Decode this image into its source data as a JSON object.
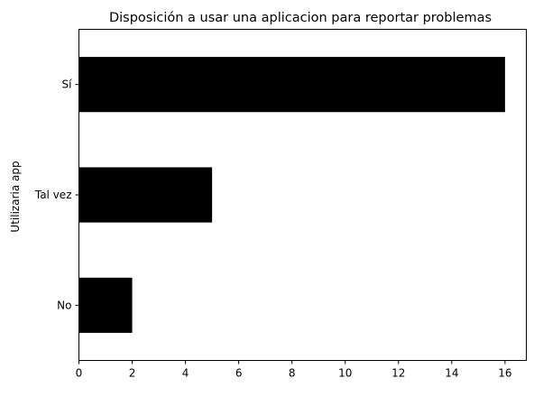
{
  "chart_data": {
    "type": "bar",
    "orientation": "horizontal",
    "title": "Disposición a usar una aplicacion para reportar problemas",
    "xlabel": "",
    "ylabel": "Utilizaria app",
    "categories": [
      "No",
      "Tal vez",
      "Sí"
    ],
    "values": [
      2,
      5,
      16
    ],
    "xlim": [
      0,
      16.8
    ],
    "xticks": [
      0,
      2,
      4,
      6,
      8,
      10,
      12,
      14,
      16
    ],
    "grid": false,
    "legend": "none",
    "bar_color": "#000000"
  }
}
